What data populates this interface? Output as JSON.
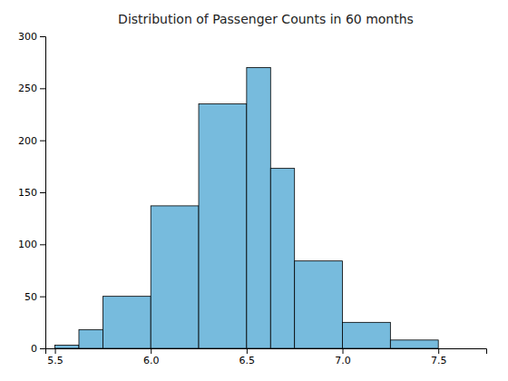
{
  "chart_data": {
    "type": "histogram",
    "title": "Distribution of Passenger Counts in 60 months",
    "color": "#77BBDD",
    "bins": [
      5.5,
      5.625,
      5.75,
      6.0,
      6.25,
      6.5,
      6.625,
      6.75,
      7.0,
      7.25,
      7.5,
      7.75
    ],
    "values": [
      3,
      18,
      50,
      137,
      235,
      270,
      173,
      84,
      25,
      8,
      0
    ],
    "xlim": [
      5.45,
      7.75
    ],
    "ylim": [
      0,
      300
    ],
    "xticks": [
      5.5,
      {
        "value": 6.0,
        "label": "6.0"
      },
      6.5,
      {
        "value": 7.0,
        "label": "7.0"
      },
      7.5
    ],
    "yticks": [
      0,
      50,
      100,
      150,
      200,
      250,
      300
    ]
  }
}
